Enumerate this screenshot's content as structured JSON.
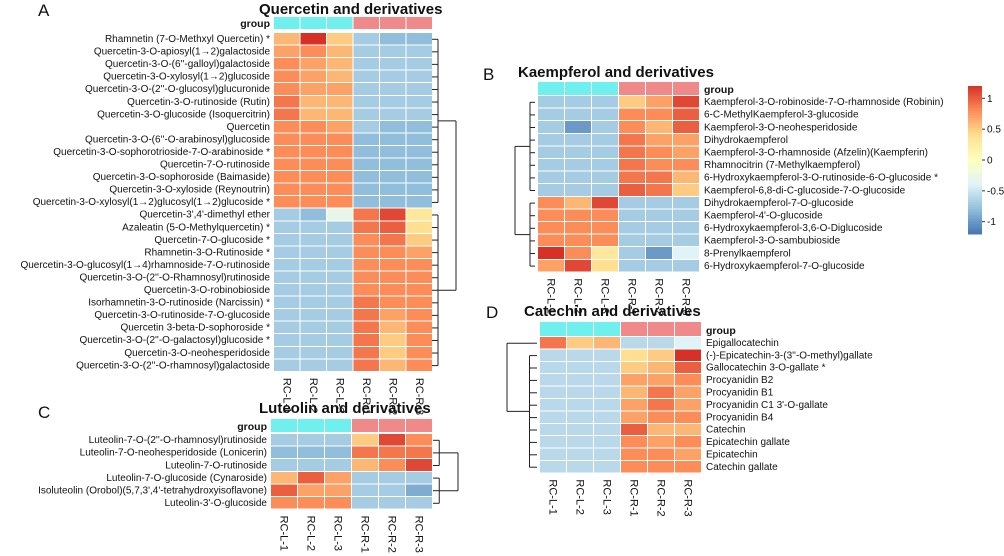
{
  "chart_data": [
    {
      "type": "heatmap",
      "panel": "A",
      "title": "Quercetin and derivatives",
      "group_label": "group",
      "columns": [
        "RC-L-1",
        "RC-L-2",
        "RC-L-3",
        "RC-R-1",
        "RC-R-2",
        "RC-R-3"
      ],
      "rows": [
        "Rhamnetin (7-O-Methxyl Quercetin) *",
        "Quercetin-3-O-apiosyl(1→2)galactoside",
        "Quercetin-3-O-(6''-galloyl)galactoside",
        "Quercetin-3-O-xylosyl(1→2)glucoside",
        "Quercetin-3-O-(2''-O-glucosyl)glucuronide",
        "Quercetin-3-O-rutinoside (Rutin)",
        "Quercetin-3-O-glucoside (Isoquercitrin)",
        "Quercetin",
        "Quercetin-3-O-(6''-O-arabinosyl)glucoside",
        "Quercetin-3-O-sophorotrioside-7-O-arabinoside *",
        "Quercetin-7-O-rutinoside",
        "Quercetin-3-O-sophoroside (Baimaside)",
        "Quercetin-3-O-xyloside (Reynoutrin)",
        "Quercetin-3-O-xylosyl(1→2)glucosyl(1→2)glucoside *",
        "Quercetin-3',4'-dimethyl ether",
        "Azaleatin (5-O-Methylquercetin) *",
        "Quercetin-7-O-glucoside *",
        "Rhamnetin-3-O-Rutinoside *",
        "Quercetin-3-O-glucosyl(1→4)rhamnoside-7-O-rutinoside",
        "Quercetin-3-O-(2''-O-Rhamnosyl)rutinoside",
        "Quercetin-3-O-robinobioside",
        "Isorhamnetin-3-O-rutinoside (Narcissin) *",
        "Quercetin-3-O-rutinoside-7-O-glucoside",
        "Quercetin 3-beta-D-sophoroside *",
        "Quercetin-3-O-(2''-O-galactosyl)glucoside *",
        "Quercetin-3-O-neohesperidoside",
        "Quercetin-3-O-(2''-O-rhamnosyl)galactoside"
      ],
      "values": [
        [
          0.6,
          1.2,
          0.5,
          -0.7,
          -0.8,
          -0.8
        ],
        [
          0.7,
          0.8,
          0.6,
          -0.7,
          -0.7,
          -0.7
        ],
        [
          0.8,
          0.7,
          0.6,
          -0.7,
          -0.7,
          -0.7
        ],
        [
          0.8,
          0.7,
          0.6,
          -0.7,
          -0.7,
          -0.7
        ],
        [
          0.8,
          0.7,
          0.7,
          -0.7,
          -0.7,
          -0.7
        ],
        [
          0.9,
          0.6,
          0.6,
          -0.7,
          -0.7,
          -0.7
        ],
        [
          0.9,
          0.6,
          0.6,
          -0.7,
          -0.7,
          -0.7
        ],
        [
          0.8,
          0.8,
          0.7,
          -0.7,
          -0.8,
          -0.8
        ],
        [
          0.8,
          0.8,
          0.8,
          -0.8,
          -0.8,
          -0.8
        ],
        [
          0.8,
          0.8,
          0.8,
          -0.8,
          -0.8,
          -0.8
        ],
        [
          0.8,
          0.8,
          0.8,
          -0.8,
          -0.8,
          -0.8
        ],
        [
          0.8,
          0.8,
          0.8,
          -0.8,
          -0.8,
          -0.8
        ],
        [
          0.8,
          0.8,
          0.8,
          -0.8,
          -0.8,
          -0.8
        ],
        [
          0.8,
          0.8,
          0.8,
          -0.8,
          -0.8,
          -0.8
        ],
        [
          -0.7,
          -0.8,
          -0.3,
          0.9,
          1.1,
          0.3
        ],
        [
          -0.7,
          -0.7,
          -0.7,
          0.9,
          1.0,
          0.4
        ],
        [
          -0.7,
          -0.7,
          -0.7,
          0.8,
          0.9,
          0.5
        ],
        [
          -0.7,
          -0.7,
          -0.7,
          0.8,
          0.8,
          0.7
        ],
        [
          -0.7,
          -0.7,
          -0.7,
          0.8,
          0.8,
          0.8
        ],
        [
          -0.7,
          -0.7,
          -0.7,
          0.8,
          0.8,
          0.8
        ],
        [
          -0.7,
          -0.7,
          -0.7,
          0.8,
          0.8,
          0.8
        ],
        [
          -0.7,
          -0.7,
          -0.7,
          0.9,
          0.8,
          0.8
        ],
        [
          -0.7,
          -0.7,
          -0.7,
          0.9,
          0.7,
          0.8
        ],
        [
          -0.7,
          -0.7,
          -0.7,
          0.9,
          0.6,
          0.8
        ],
        [
          -0.7,
          -0.7,
          -0.7,
          0.9,
          0.5,
          0.8
        ],
        [
          -0.7,
          -0.7,
          -0.7,
          0.9,
          0.5,
          0.8
        ],
        [
          -0.7,
          -0.7,
          -0.7,
          0.9,
          0.6,
          0.8
        ]
      ]
    },
    {
      "type": "heatmap",
      "panel": "B",
      "title": "Kaempferol and derivatives",
      "group_label": "group",
      "columns": [
        "RC-L-1",
        "RC-L-2",
        "RC-L-3",
        "RC-R-1",
        "RC-R-2",
        "RC-R-3"
      ],
      "rows": [
        "Kaempferol-3-O-robinoside-7-O-rhamnoside (Robinin)",
        "6-C-MethylKaempferol-3-glucoside",
        "Kaempferol-3-O-neohesperidoside",
        "Dihydrokaempferol",
        "Kaempferol-3-O-rhamnoside (Afzelin)(Kaempferin)",
        "Rhamnocitrin (7-Methylkaempferol)",
        "6-Hydroxykaempferol-3-O-rutinoside-6-O-glucoside *",
        "Kaempferol-6,8-di-C-glucoside-7-O-glucoside",
        "Dihydrokaempferol-7-O-glucoside",
        "Kaempferol-4'-O-glucoside",
        "6-Hydroxykaempferol-3,6-O-Diglucoside",
        "Kaempferol-3-O-sambubioside",
        "8-Prenylkaempferol",
        "6-Hydroxykaempferol-7-O-glucoside"
      ],
      "values": [
        [
          -0.7,
          -0.7,
          -0.7,
          0.5,
          0.7,
          1.1
        ],
        [
          -0.7,
          -0.7,
          -0.7,
          0.8,
          0.8,
          1.0
        ],
        [
          -0.7,
          -1.0,
          -0.7,
          0.8,
          0.6,
          1.0
        ],
        [
          -0.7,
          -0.7,
          -0.7,
          0.9,
          0.7,
          0.7
        ],
        [
          -0.7,
          -0.7,
          -0.7,
          0.9,
          0.8,
          0.7
        ],
        [
          -0.7,
          -0.7,
          -0.7,
          0.9,
          0.8,
          0.8
        ],
        [
          -0.7,
          -0.7,
          -0.7,
          0.9,
          0.9,
          0.6
        ],
        [
          -0.7,
          -0.7,
          -0.7,
          1.0,
          0.9,
          0.5
        ],
        [
          0.8,
          0.6,
          1.1,
          -0.7,
          -0.7,
          -0.7
        ],
        [
          0.8,
          0.8,
          0.8,
          -0.7,
          -0.7,
          -0.7
        ],
        [
          0.8,
          0.8,
          0.8,
          -0.7,
          -0.7,
          -0.7
        ],
        [
          0.8,
          0.8,
          0.8,
          -0.7,
          -0.7,
          -0.7
        ],
        [
          1.2,
          0.8,
          0.3,
          -0.7,
          -1.0,
          -0.4
        ],
        [
          0.7,
          1.1,
          0.4,
          -0.7,
          -0.7,
          -0.7
        ]
      ],
      "colorbar": {
        "range": [
          -1.2,
          1.2
        ],
        "ticks": [
          1,
          0.5,
          0,
          -0.5,
          -1
        ],
        "tick_labels": [
          "1",
          "0.5",
          "0",
          "-0.5",
          "-1"
        ]
      }
    },
    {
      "type": "heatmap",
      "panel": "C",
      "title": "Luteolin and derivatives",
      "group_label": "group",
      "columns": [
        "RC-L-1",
        "RC-L-2",
        "RC-L-3",
        "RC-R-1",
        "RC-R-2",
        "RC-R-3"
      ],
      "rows": [
        "Luteolin-7-O-(2''-O-rhamnosyl)rutinoside",
        "Luteolin-7-O-neohesperidoside (Lonicerin)",
        "Luteolin-7-O-rutinoside",
        "Luteolin-7-O-glucoside (Cynaroside)",
        "Isoluteolin (Orobol)(5,7,3',4'-tetrahydroxyisoflavone)",
        "Luteolin-3'-O-glucoside"
      ],
      "values": [
        [
          -0.7,
          -0.7,
          -0.7,
          0.5,
          1.1,
          0.8
        ],
        [
          -0.8,
          -0.8,
          -0.8,
          0.9,
          0.9,
          0.9
        ],
        [
          -0.7,
          -0.7,
          -0.7,
          0.6,
          0.8,
          1.1
        ],
        [
          0.6,
          1.0,
          0.7,
          -0.7,
          -0.7,
          -0.7
        ],
        [
          1.0,
          0.7,
          0.7,
          -0.7,
          -0.7,
          -0.9
        ],
        [
          0.8,
          0.8,
          0.8,
          -0.7,
          -0.7,
          -0.7
        ]
      ]
    },
    {
      "type": "heatmap",
      "panel": "D",
      "title": "Catechin and derivatives",
      "group_label": "group",
      "columns": [
        "RC-L-1",
        "RC-L-2",
        "RC-L-3",
        "RC-R-1",
        "RC-R-2",
        "RC-R-3"
      ],
      "rows": [
        "Epigallocatechin",
        "(-)-Epicatechin-3-(3''-O-methyl)gallate",
        "Gallocatechin 3-O-gallate *",
        "Procyanidin B2",
        "Procyanidin B1",
        "Procyanidin C1 3'-O-gallate",
        "Procyanidin B4",
        "Catechin",
        "Epicatechin gallate",
        "Epicatechin",
        "Catechin gallate"
      ],
      "values": [
        [
          0.9,
          0.5,
          0.6,
          -0.6,
          -0.6,
          -0.4
        ],
        [
          -0.6,
          -0.6,
          -0.6,
          0.4,
          0.5,
          1.2
        ],
        [
          -0.6,
          -0.6,
          -0.6,
          0.5,
          0.6,
          1.0
        ],
        [
          -0.6,
          -0.6,
          -0.6,
          0.7,
          0.7,
          0.8
        ],
        [
          -0.6,
          -0.6,
          -0.6,
          0.6,
          0.9,
          0.7
        ],
        [
          -0.6,
          -0.6,
          -0.6,
          0.7,
          0.9,
          0.7
        ],
        [
          -0.6,
          -0.6,
          -0.6,
          0.7,
          0.8,
          0.8
        ],
        [
          -0.6,
          -0.6,
          -0.6,
          1.0,
          0.6,
          0.6
        ],
        [
          -0.6,
          -0.6,
          -0.6,
          0.8,
          0.7,
          0.8
        ],
        [
          -0.6,
          -0.6,
          -0.6,
          0.8,
          0.8,
          0.7
        ],
        [
          -0.6,
          -0.6,
          -0.6,
          0.8,
          0.8,
          0.8
        ]
      ]
    }
  ],
  "colors": {
    "group_left": "#6ff0ee",
    "group_right": "#f08a8a",
    "scale": [
      "#4575b4",
      "#91bfdb",
      "#e0f3f8",
      "#ffffbf",
      "#fee090",
      "#fc8d59",
      "#d73027"
    ]
  }
}
